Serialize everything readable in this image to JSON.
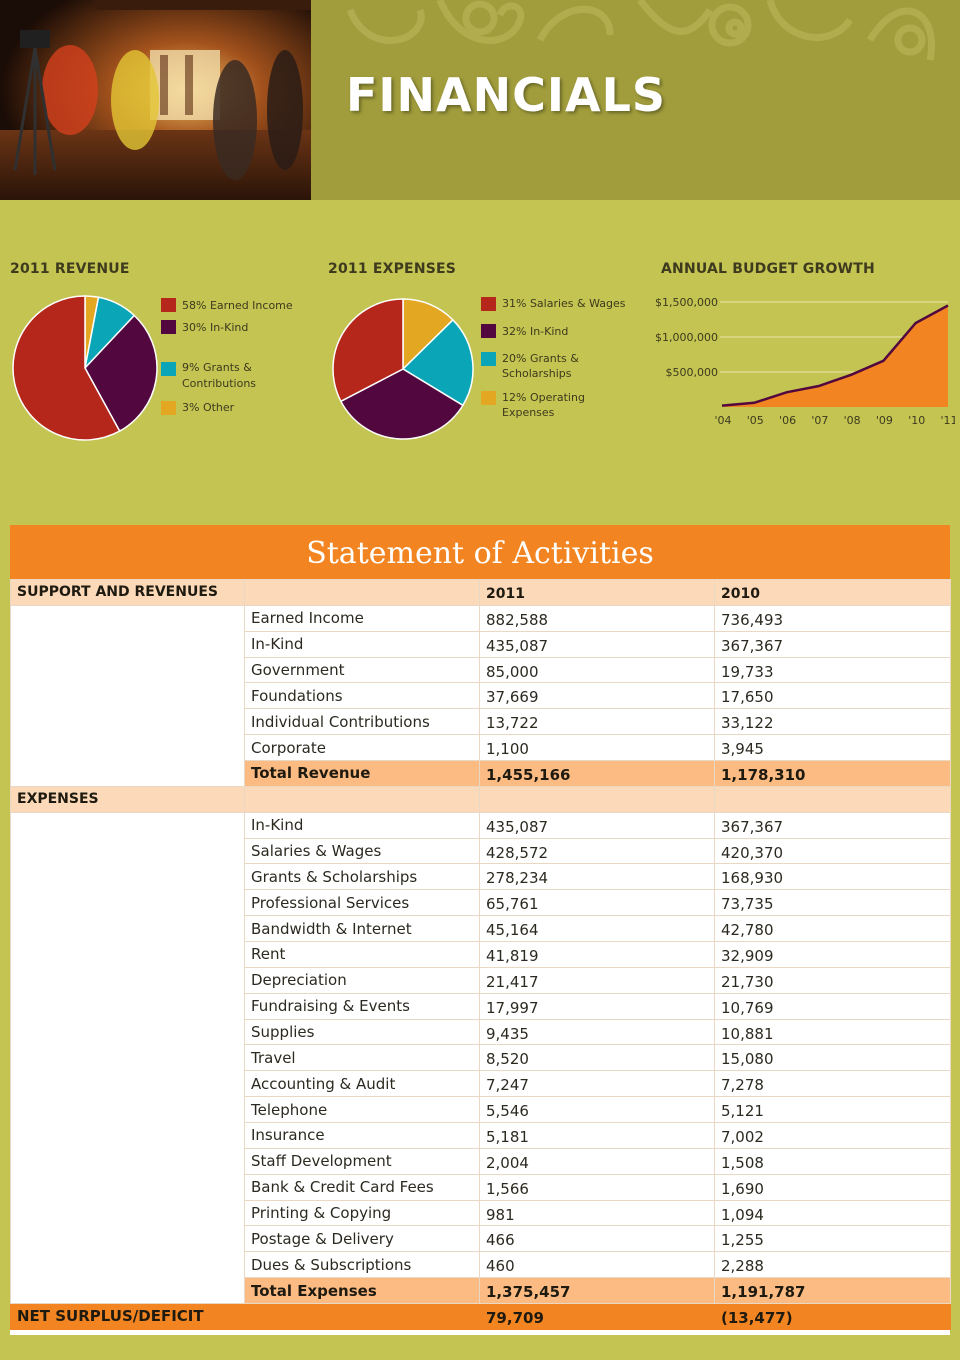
{
  "header": {
    "title": "FINANCIALS"
  },
  "revenue_chart": {
    "title": "2011 REVENUE",
    "legend": [
      "58% Earned Income",
      "30% In-Kind",
      "9% Grants &",
      "Contributions",
      "3% Other"
    ]
  },
  "expenses_chart": {
    "title": "2011 EXPENSES",
    "legend": [
      "31% Salaries & Wages",
      "32% In-Kind",
      "20% Grants &",
      "Scholarships",
      "12% Operating",
      "Expenses"
    ]
  },
  "budget_chart": {
    "title": "ANNUAL BUDGET GROWTH",
    "yticks": [
      "$1,500,000",
      "$1,000,000",
      "$500,000"
    ],
    "xticks": [
      "'04",
      "'05",
      "'06",
      "'07",
      "'08",
      "'09",
      "'10",
      "'11"
    ]
  },
  "colors": {
    "red": "#b5271b",
    "purple": "#52073f",
    "teal": "#0aa6b8",
    "gold": "#e3a722",
    "orange": "#f28522",
    "background": "#c3c451"
  },
  "chart_data": [
    {
      "type": "pie",
      "title": "2011 REVENUE",
      "categories": [
        "Earned Income",
        "In-Kind",
        "Grants & Contributions",
        "Other"
      ],
      "values": [
        58,
        30,
        9,
        3
      ],
      "colors": [
        "#b5271b",
        "#52073f",
        "#0aa6b8",
        "#e3a722"
      ]
    },
    {
      "type": "pie",
      "title": "2011 EXPENSES",
      "categories": [
        "Salaries & Wages",
        "In-Kind",
        "Grants & Scholarships",
        "Operating Expenses"
      ],
      "values": [
        31,
        32,
        20,
        12
      ],
      "colors": [
        "#b5271b",
        "#52073f",
        "#0aa6b8",
        "#e3a722"
      ]
    },
    {
      "type": "area",
      "title": "ANNUAL BUDGET GROWTH",
      "x": [
        "'04",
        "'05",
        "'06",
        "'07",
        "'08",
        "'09",
        "'10",
        "'11"
      ],
      "values": [
        20000,
        60000,
        210000,
        300000,
        460000,
        660000,
        1200000,
        1450000
      ],
      "ylim": [
        0,
        1600000
      ],
      "grid": true
    }
  ],
  "statement": {
    "title": "Statement of Activities",
    "col_2011": "2011",
    "col_2010": "2010",
    "support_heading": "SUPPORT AND REVENUES",
    "revenues": [
      {
        "label": "Earned Income",
        "y2011": "882,588",
        "y2010": "736,493"
      },
      {
        "label": "In-Kind",
        "y2011": "435,087",
        "y2010": "367,367"
      },
      {
        "label": "Government",
        "y2011": "85,000",
        "y2010": "19,733"
      },
      {
        "label": "Foundations",
        "y2011": "37,669",
        "y2010": "17,650"
      },
      {
        "label": "Individual Contributions",
        "y2011": "13,722",
        "y2010": "33,122"
      },
      {
        "label": "Corporate",
        "y2011": "1,100",
        "y2010": "3,945"
      }
    ],
    "total_revenue": {
      "label": "Total Revenue",
      "y2011": "1,455,166",
      "y2010": "1,178,310"
    },
    "expenses_heading": "EXPENSES",
    "expenses": [
      {
        "label": "In-Kind",
        "y2011": "435,087",
        "y2010": "367,367"
      },
      {
        "label": "Salaries & Wages",
        "y2011": "428,572",
        "y2010": "420,370"
      },
      {
        "label": "Grants & Scholarships",
        "y2011": "278,234",
        "y2010": "168,930"
      },
      {
        "label": "Professional Services",
        "y2011": "65,761",
        "y2010": "73,735"
      },
      {
        "label": "Bandwidth & Internet",
        "y2011": "45,164",
        "y2010": "42,780"
      },
      {
        "label": "Rent",
        "y2011": "41,819",
        "y2010": "32,909"
      },
      {
        "label": "Depreciation",
        "y2011": "21,417",
        "y2010": "21,730"
      },
      {
        "label": "Fundraising & Events",
        "y2011": "17,997",
        "y2010": "10,769"
      },
      {
        "label": "Supplies",
        "y2011": "9,435",
        "y2010": "10,881"
      },
      {
        "label": "Travel",
        "y2011": "8,520",
        "y2010": "15,080"
      },
      {
        "label": "Accounting & Audit",
        "y2011": "7,247",
        "y2010": "7,278"
      },
      {
        "label": "Telephone",
        "y2011": "5,546",
        "y2010": "5,121"
      },
      {
        "label": "Insurance",
        "y2011": "5,181",
        "y2010": "7,002"
      },
      {
        "label": "Staff Development",
        "y2011": "2,004",
        "y2010": "1,508"
      },
      {
        "label": "Bank & Credit Card Fees",
        "y2011": "1,566",
        "y2010": "1,690"
      },
      {
        "label": "Printing & Copying",
        "y2011": "981",
        "y2010": "1,094"
      },
      {
        "label": "Postage & Delivery",
        "y2011": "466",
        "y2010": "1,255"
      },
      {
        "label": "Dues & Subscriptions",
        "y2011": "460",
        "y2010": "2,288"
      }
    ],
    "total_expenses": {
      "label": "Total Expenses",
      "y2011": "1,375,457",
      "y2010": "1,191,787"
    },
    "net": {
      "label": "NET SURPLUS/DEFICIT",
      "y2011": "79,709",
      "y2010": "(13,477)"
    }
  }
}
